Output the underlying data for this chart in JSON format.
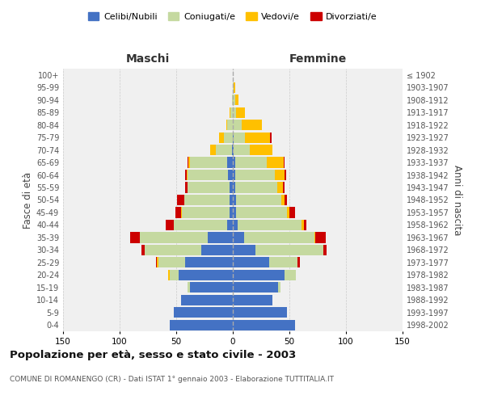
{
  "age_groups": [
    "0-4",
    "5-9",
    "10-14",
    "15-19",
    "20-24",
    "25-29",
    "30-34",
    "35-39",
    "40-44",
    "45-49",
    "50-54",
    "55-59",
    "60-64",
    "65-69",
    "70-74",
    "75-79",
    "80-84",
    "85-89",
    "90-94",
    "95-99",
    "100+"
  ],
  "birth_years": [
    "1998-2002",
    "1993-1997",
    "1988-1992",
    "1983-1987",
    "1978-1982",
    "1973-1977",
    "1968-1972",
    "1963-1967",
    "1958-1962",
    "1953-1957",
    "1948-1952",
    "1943-1947",
    "1938-1942",
    "1933-1937",
    "1928-1932",
    "1923-1927",
    "1918-1922",
    "1913-1917",
    "1908-1912",
    "1903-1907",
    "≤ 1902"
  ],
  "males": {
    "celibi": [
      56,
      52,
      46,
      38,
      48,
      42,
      28,
      22,
      5,
      3,
      3,
      3,
      4,
      5,
      1,
      0,
      0,
      0,
      0,
      0,
      0
    ],
    "coniugati": [
      0,
      0,
      0,
      2,
      8,
      24,
      50,
      60,
      47,
      42,
      40,
      37,
      36,
      33,
      14,
      8,
      5,
      2,
      1,
      0,
      0
    ],
    "vedovi": [
      0,
      0,
      0,
      0,
      1,
      1,
      0,
      0,
      0,
      1,
      0,
      0,
      1,
      1,
      5,
      4,
      1,
      1,
      0,
      0,
      0
    ],
    "divorziati": [
      0,
      0,
      0,
      0,
      0,
      1,
      3,
      9,
      7,
      5,
      6,
      2,
      1,
      1,
      0,
      0,
      0,
      0,
      0,
      0,
      0
    ]
  },
  "females": {
    "nubili": [
      55,
      48,
      35,
      40,
      46,
      32,
      20,
      10,
      4,
      3,
      3,
      2,
      2,
      2,
      1,
      1,
      0,
      0,
      0,
      0,
      0
    ],
    "coniugate": [
      0,
      0,
      0,
      2,
      10,
      25,
      60,
      62,
      57,
      45,
      40,
      37,
      35,
      28,
      14,
      10,
      8,
      3,
      2,
      1,
      0
    ],
    "vedove": [
      0,
      0,
      0,
      0,
      0,
      0,
      0,
      1,
      2,
      2,
      3,
      5,
      9,
      15,
      20,
      22,
      18,
      8,
      3,
      1,
      0
    ],
    "divorziate": [
      0,
      0,
      0,
      0,
      0,
      2,
      3,
      9,
      2,
      5,
      2,
      2,
      1,
      1,
      0,
      1,
      0,
      0,
      0,
      0,
      0
    ]
  },
  "colors": {
    "celibi": "#4472c4",
    "coniugati": "#c5d9a0",
    "vedovi": "#ffc000",
    "divorziati": "#cc0000"
  },
  "title": "Popolazione per età, sesso e stato civile - 2003",
  "subtitle": "COMUNE DI ROMANENGO (CR) - Dati ISTAT 1° gennaio 2003 - Elaborazione TUTTITALIA.IT",
  "xlabel_left": "Maschi",
  "xlabel_right": "Femmine",
  "ylabel_left": "Fasce di età",
  "ylabel_right": "Anni di nascita",
  "xlim": 150,
  "xticks": [
    150,
    100,
    50,
    0,
    50,
    100,
    150
  ],
  "legend_labels": [
    "Celibi/Nubili",
    "Coniugati/e",
    "Vedovi/e",
    "Divorziati/e"
  ],
  "bg_color": "#ffffff",
  "plot_bg": "#f0f0f0",
  "grid_color": "#cccccc"
}
